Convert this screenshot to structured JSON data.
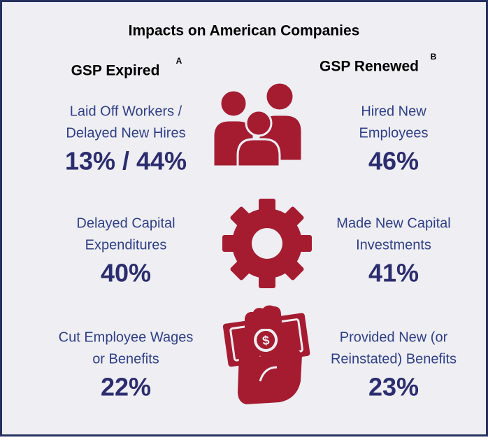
{
  "title": "Impacts on American Companies",
  "columns": [
    {
      "label": "GSP Expired",
      "note": "A"
    },
    {
      "label": "GSP Renewed",
      "note": "B"
    }
  ],
  "rows": [
    {
      "left": {
        "lines": [
          "Laid Off Workers /",
          "Delayed New Hires"
        ],
        "value": "13% / 44%"
      },
      "right": {
        "lines": [
          "Hired New",
          "Employees"
        ],
        "value": "46%"
      }
    },
    {
      "left": {
        "lines": [
          "Delayed Capital",
          "Expenditures"
        ],
        "value": "40%"
      },
      "right": {
        "lines": [
          "Made New Capital",
          "Investments"
        ],
        "value": "41%"
      }
    },
    {
      "left": {
        "lines": [
          "Cut Employee Wages",
          "or Benefits"
        ],
        "value": "22%"
      },
      "right": {
        "lines": [
          "Provided New (or",
          "Reinstated) Benefits"
        ],
        "value": "23%"
      }
    }
  ]
}
